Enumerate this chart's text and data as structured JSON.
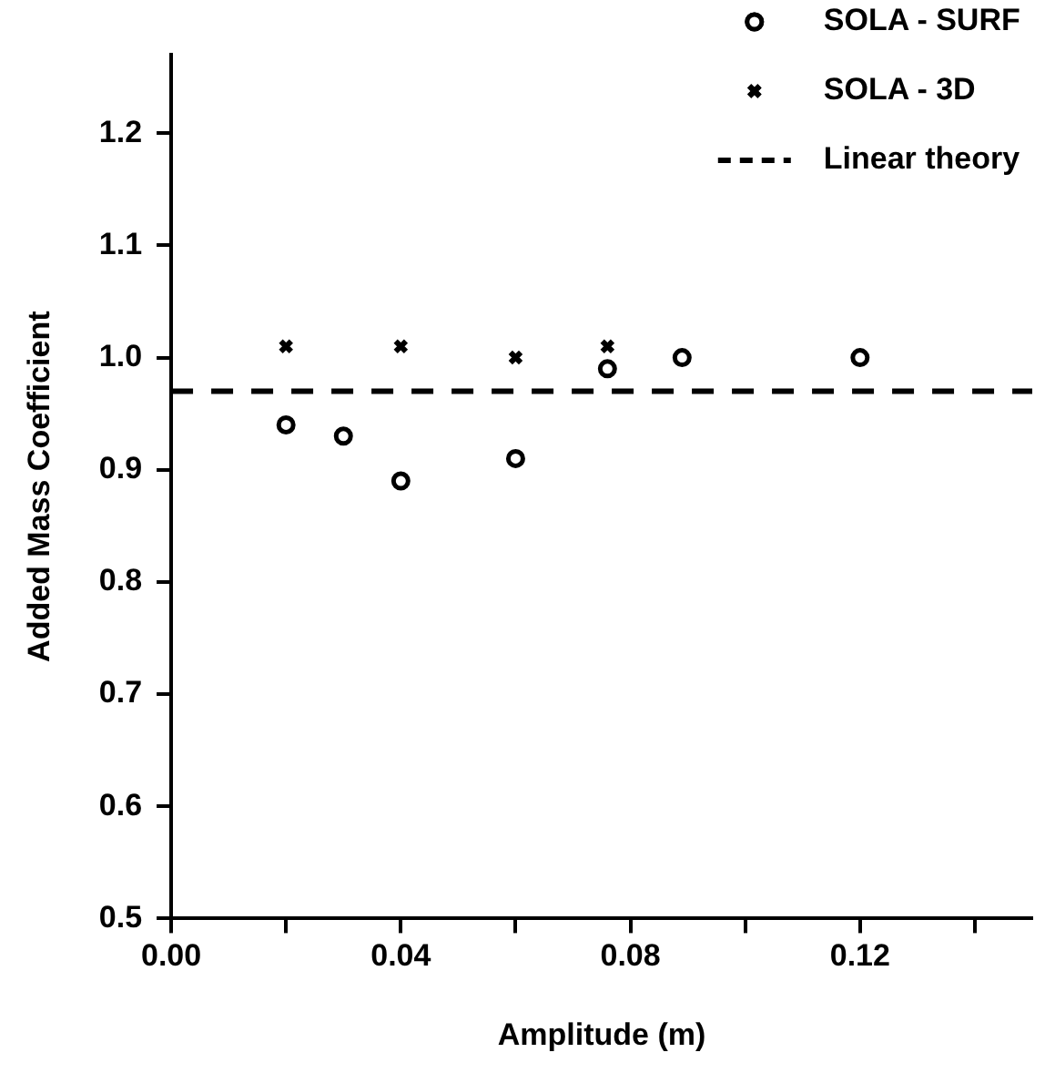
{
  "chart_data": {
    "type": "scatter",
    "xlabel": "Amplitude (m)",
    "ylabel": "Added Mass Coefficient",
    "xlim": [
      0,
      0.15
    ],
    "ylim": [
      0.5,
      1.27
    ],
    "xticks": [
      {
        "value": 0,
        "label": "0.00"
      },
      {
        "value": 0.02,
        "label": null
      },
      0.04,
      {
        "value": 0.06,
        "label": null
      },
      0.08,
      {
        "value": 0.1,
        "label": null
      },
      0.12,
      {
        "value": 0.14,
        "label": null
      }
    ],
    "yticks": [
      0.5,
      0.6,
      0.7,
      0.8,
      0.9,
      {
        "value": 1.0,
        "label": "1.0"
      },
      1.1,
      1.2
    ],
    "grid": false,
    "legend": "top right",
    "series": [
      {
        "name": "SOLA - SURF",
        "color": "#000000",
        "marker": "circle",
        "x": [
          0.02,
          0.03,
          0.04,
          0.06,
          0.076,
          0.089,
          0.12
        ],
        "values": [
          0.94,
          0.93,
          0.89,
          0.91,
          0.99,
          1.0,
          1.0
        ]
      },
      {
        "name": "SOLA - 3D",
        "color": "#000000",
        "marker": "cross",
        "x": [
          0.02,
          0.04,
          0.06,
          0.076
        ],
        "values": [
          1.01,
          1.01,
          1.0,
          1.01
        ]
      },
      {
        "name": "Linear theory",
        "type": "line",
        "color": "#000000",
        "marker": "none",
        "line_style": "dashed",
        "x": [
          0,
          0.15
        ],
        "values": [
          0.97,
          0.97
        ]
      }
    ]
  }
}
